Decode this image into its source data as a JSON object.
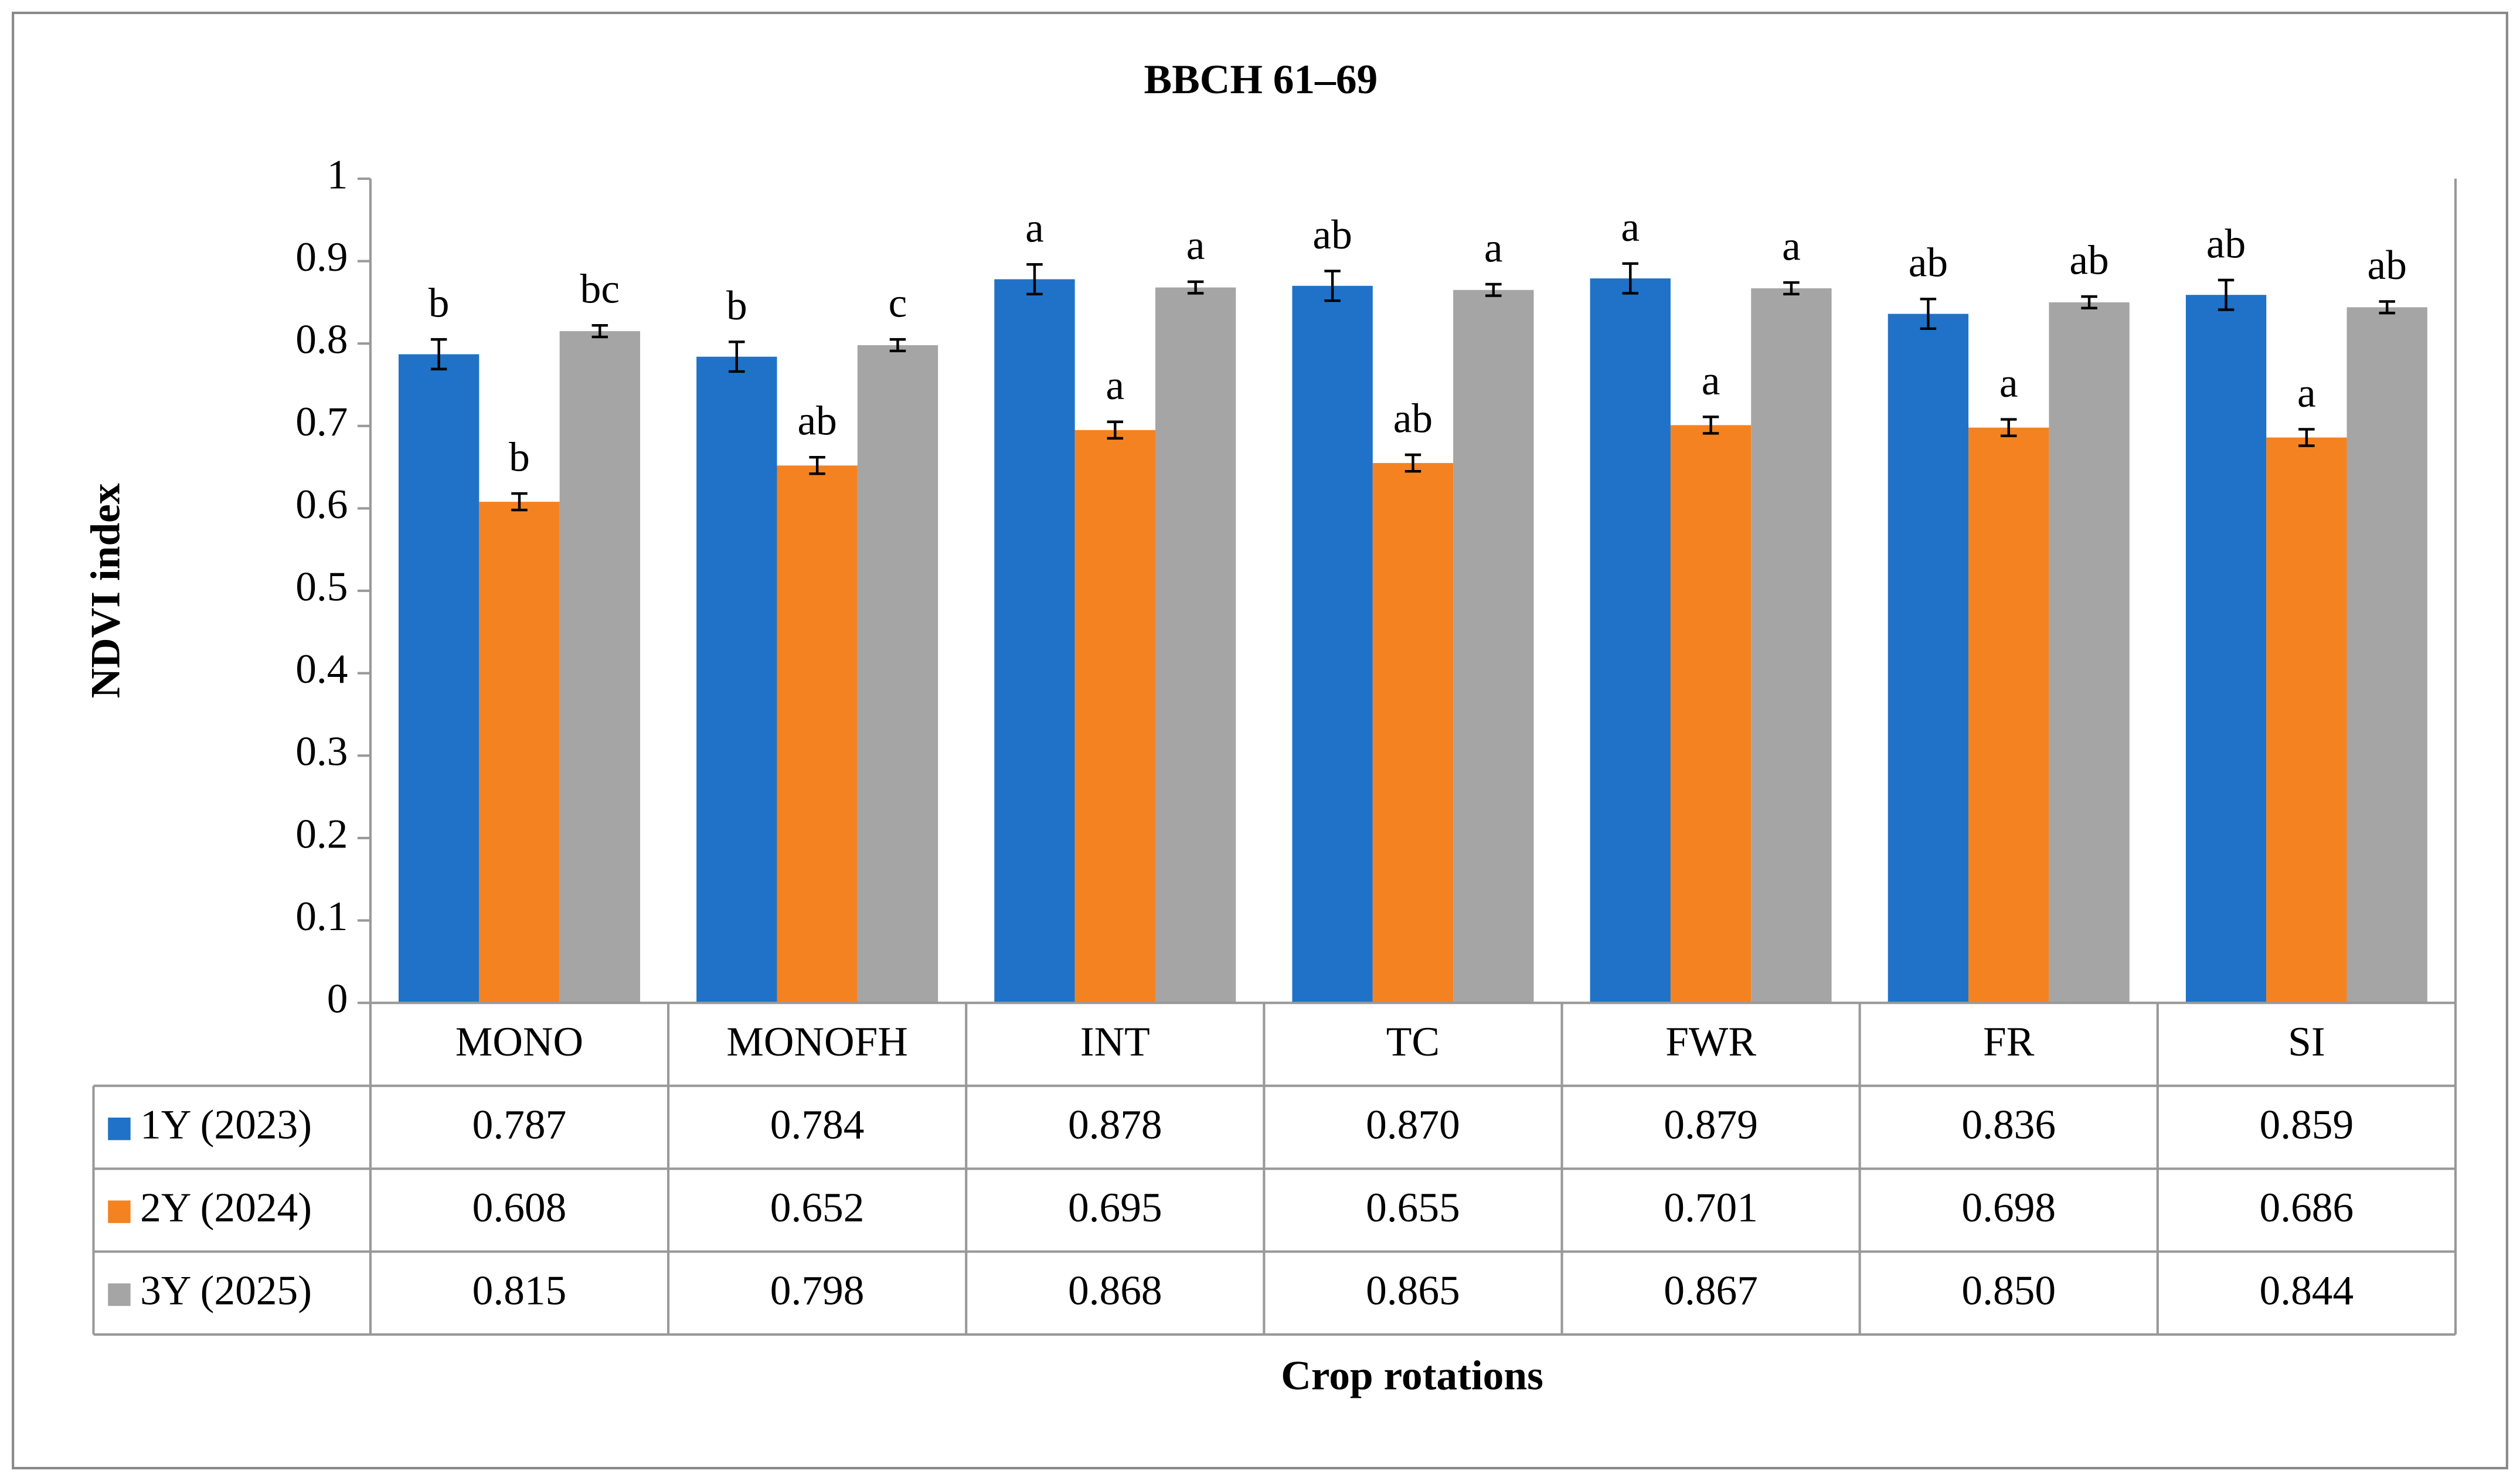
{
  "chart_data": {
    "type": "bar",
    "title": "BBCH 61–69",
    "x_label": "Crop rotations",
    "y_label": "NDVI index",
    "categories": [
      "MONO",
      "MONOFH",
      "INT",
      "TC",
      "FWR",
      "FR",
      "SI"
    ],
    "series": [
      {
        "name": "1Y (2023)",
        "color": "#1f72c8",
        "values": [
          0.787,
          0.784,
          0.878,
          0.87,
          0.879,
          0.836,
          0.859
        ],
        "value_labels": [
          "0.787",
          "0.784",
          "0.878",
          "0.870",
          "0.879",
          "0.836",
          "0.859"
        ],
        "errors": [
          0.018,
          0.018,
          0.018,
          0.018,
          0.018,
          0.018,
          0.018
        ],
        "letters": [
          "b",
          "b",
          "a",
          "ab",
          "a",
          "ab",
          "ab"
        ]
      },
      {
        "name": "2Y (2024)",
        "color": "#f58220",
        "values": [
          0.608,
          0.652,
          0.695,
          0.655,
          0.701,
          0.698,
          0.686
        ],
        "value_labels": [
          "0.608",
          "0.652",
          "0.695",
          "0.655",
          "0.701",
          "0.698",
          "0.686"
        ],
        "errors": [
          0.01,
          0.01,
          0.01,
          0.01,
          0.01,
          0.01,
          0.01
        ],
        "letters": [
          "b",
          "ab",
          "a",
          "ab",
          "a",
          "a",
          "a"
        ]
      },
      {
        "name": "3Y (2025)",
        "color": "#a5a5a5",
        "values": [
          0.815,
          0.798,
          0.868,
          0.865,
          0.867,
          0.85,
          0.844
        ],
        "value_labels": [
          "0.815",
          "0.798",
          "0.868",
          "0.865",
          "0.867",
          "0.850",
          "0.844"
        ],
        "errors": [
          0.007,
          0.007,
          0.007,
          0.007,
          0.007,
          0.007,
          0.007
        ],
        "letters": [
          "bc",
          "c",
          "a",
          "a",
          "a",
          "ab",
          "ab"
        ]
      }
    ],
    "ylim": [
      0,
      1
    ],
    "yticks": [
      0,
      0.1,
      0.2,
      0.3,
      0.4,
      0.5,
      0.6,
      0.7,
      0.8,
      0.9,
      1
    ],
    "grid": false
  }
}
